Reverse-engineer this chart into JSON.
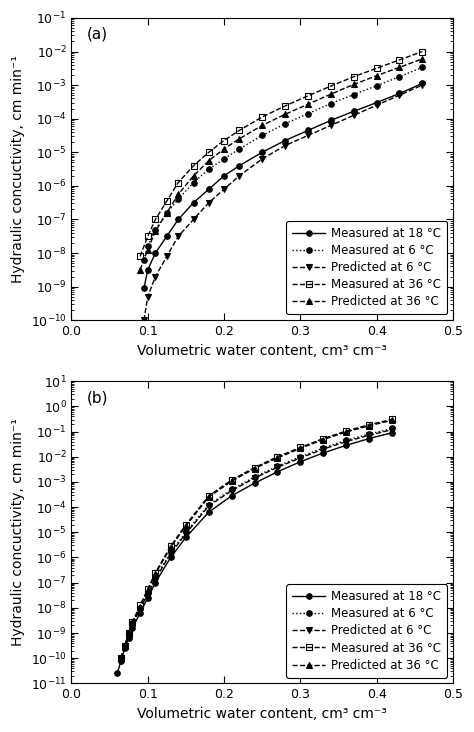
{
  "panel_a": {
    "label": "(a)",
    "ylim_exp": [
      -10,
      -1
    ],
    "xlim": [
      0.0,
      0.5
    ],
    "xticks": [
      0.0,
      0.1,
      0.2,
      0.3,
      0.4,
      0.5
    ],
    "series": {
      "measured_18": {
        "x": [
          0.095,
          0.1,
          0.11,
          0.125,
          0.14,
          0.16,
          0.18,
          0.2,
          0.22,
          0.25,
          0.28,
          0.31,
          0.34,
          0.37,
          0.4,
          0.43,
          0.46
        ],
        "y_exp": [
          -9.05,
          -8.5,
          -8.0,
          -7.5,
          -7.0,
          -6.5,
          -6.1,
          -5.7,
          -5.4,
          -5.0,
          -4.65,
          -4.35,
          -4.05,
          -3.78,
          -3.52,
          -3.25,
          -2.95
        ],
        "color": "#000000",
        "linestyle": "-",
        "marker": "o",
        "markersize": 4,
        "label": "Measured at 18 °C",
        "fillstyle": "full",
        "linewidth": 1.0
      },
      "measured_6": {
        "x": [
          0.095,
          0.1,
          0.11,
          0.125,
          0.14,
          0.16,
          0.18,
          0.2,
          0.22,
          0.25,
          0.28,
          0.31,
          0.34,
          0.37,
          0.4,
          0.43,
          0.46
        ],
        "y_exp": [
          -8.2,
          -7.8,
          -7.3,
          -6.8,
          -6.4,
          -5.9,
          -5.5,
          -5.2,
          -4.9,
          -4.5,
          -4.15,
          -3.85,
          -3.55,
          -3.28,
          -3.02,
          -2.75,
          -2.47
        ],
        "color": "#000000",
        "linestyle": ":",
        "marker": "o",
        "markersize": 4,
        "label": "Measured at 6 °C",
        "fillstyle": "full",
        "linewidth": 1.0
      },
      "predicted_6": {
        "x": [
          0.095,
          0.1,
          0.11,
          0.125,
          0.14,
          0.16,
          0.18,
          0.2,
          0.22,
          0.25,
          0.28,
          0.31,
          0.34,
          0.37,
          0.4,
          0.43,
          0.46
        ],
        "y_exp": [
          -10.0,
          -9.3,
          -8.7,
          -8.1,
          -7.5,
          -7.0,
          -6.5,
          -6.1,
          -5.7,
          -5.2,
          -4.8,
          -4.5,
          -4.2,
          -3.9,
          -3.6,
          -3.3,
          -3.0
        ],
        "color": "#000000",
        "linestyle": "--",
        "marker": "v",
        "markersize": 4,
        "label": "Predicted at 6 °C",
        "fillstyle": "full",
        "linewidth": 1.0
      },
      "measured_36": {
        "x": [
          0.09,
          0.1,
          0.11,
          0.125,
          0.14,
          0.16,
          0.18,
          0.2,
          0.22,
          0.25,
          0.28,
          0.31,
          0.34,
          0.37,
          0.4,
          0.43,
          0.46
        ],
        "y_exp": [
          -8.1,
          -7.5,
          -7.0,
          -6.45,
          -5.9,
          -5.4,
          -5.0,
          -4.65,
          -4.35,
          -3.95,
          -3.62,
          -3.32,
          -3.03,
          -2.75,
          -2.5,
          -2.25,
          -2.0
        ],
        "color": "#000000",
        "linestyle": "--",
        "marker": "s",
        "markersize": 4,
        "label": "Measured at 36 °C",
        "fillstyle": "none",
        "linewidth": 1.0
      },
      "predicted_36": {
        "x": [
          0.09,
          0.1,
          0.11,
          0.125,
          0.14,
          0.16,
          0.18,
          0.2,
          0.22,
          0.25,
          0.28,
          0.31,
          0.34,
          0.37,
          0.4,
          0.43,
          0.46
        ],
        "y_exp": [
          -8.5,
          -7.9,
          -7.35,
          -6.8,
          -6.25,
          -5.7,
          -5.25,
          -4.9,
          -4.6,
          -4.2,
          -3.87,
          -3.57,
          -3.27,
          -2.98,
          -2.72,
          -2.47,
          -2.22
        ],
        "color": "#000000",
        "linestyle": "--",
        "marker": "^",
        "markersize": 4,
        "label": "Predicted at 36 °C",
        "fillstyle": "full",
        "linewidth": 1.0
      }
    }
  },
  "panel_b": {
    "label": "(b)",
    "ylim_exp": [
      -11,
      1
    ],
    "xlim": [
      0.0,
      0.5
    ],
    "xticks": [
      0.0,
      0.1,
      0.2,
      0.3,
      0.4,
      0.5
    ],
    "series": {
      "measured_18": {
        "x": [
          0.06,
          0.065,
          0.07,
          0.075,
          0.08,
          0.09,
          0.1,
          0.11,
          0.13,
          0.15,
          0.18,
          0.21,
          0.24,
          0.27,
          0.3,
          0.33,
          0.36,
          0.39,
          0.42
        ],
        "y_exp": [
          -10.6,
          -10.1,
          -9.6,
          -9.2,
          -8.8,
          -8.2,
          -7.6,
          -7.0,
          -6.0,
          -5.2,
          -4.2,
          -3.55,
          -3.05,
          -2.6,
          -2.2,
          -1.85,
          -1.55,
          -1.28,
          -1.05
        ],
        "color": "#000000",
        "linestyle": "-",
        "marker": "o",
        "markersize": 4,
        "label": "Measured at 18 °C",
        "fillstyle": "full",
        "linewidth": 1.0
      },
      "measured_6": {
        "x": [
          0.065,
          0.07,
          0.075,
          0.08,
          0.09,
          0.1,
          0.11,
          0.13,
          0.15,
          0.18,
          0.21,
          0.24,
          0.27,
          0.3,
          0.33,
          0.36,
          0.39,
          0.42
        ],
        "y_exp": [
          -10.0,
          -9.5,
          -9.0,
          -8.6,
          -8.0,
          -7.4,
          -6.8,
          -5.8,
          -5.0,
          -3.9,
          -3.3,
          -2.8,
          -2.38,
          -2.0,
          -1.65,
          -1.35,
          -1.1,
          -0.88
        ],
        "color": "#000000",
        "linestyle": ":",
        "marker": "o",
        "markersize": 4,
        "label": "Measured at 6 °C",
        "fillstyle": "full",
        "linewidth": 1.0
      },
      "predicted_6": {
        "x": [
          0.065,
          0.07,
          0.075,
          0.08,
          0.09,
          0.1,
          0.11,
          0.13,
          0.15,
          0.18,
          0.21,
          0.24,
          0.27,
          0.3,
          0.33,
          0.36,
          0.39,
          0.42
        ],
        "y_exp": [
          -10.0,
          -9.5,
          -9.05,
          -8.65,
          -8.05,
          -7.45,
          -6.85,
          -5.85,
          -5.05,
          -3.95,
          -3.35,
          -2.85,
          -2.42,
          -2.05,
          -1.7,
          -1.4,
          -1.15,
          -0.93
        ],
        "color": "#000000",
        "linestyle": "--",
        "marker": "v",
        "markersize": 4,
        "label": "Predicted at 6 °C",
        "fillstyle": "full",
        "linewidth": 1.0
      },
      "measured_36": {
        "x": [
          0.065,
          0.07,
          0.075,
          0.08,
          0.09,
          0.1,
          0.11,
          0.13,
          0.15,
          0.18,
          0.21,
          0.24,
          0.27,
          0.3,
          0.33,
          0.36,
          0.39,
          0.42
        ],
        "y_exp": [
          -10.0,
          -9.5,
          -9.0,
          -8.55,
          -7.9,
          -7.25,
          -6.6,
          -5.55,
          -4.7,
          -3.55,
          -2.92,
          -2.43,
          -2.0,
          -1.63,
          -1.28,
          -0.98,
          -0.73,
          -0.52
        ],
        "color": "#000000",
        "linestyle": "--",
        "marker": "s",
        "markersize": 4,
        "label": "Measured at 36 °C",
        "fillstyle": "none",
        "linewidth": 1.0
      },
      "predicted_36": {
        "x": [
          0.065,
          0.07,
          0.075,
          0.08,
          0.09,
          0.1,
          0.11,
          0.13,
          0.15,
          0.18,
          0.21,
          0.24,
          0.27,
          0.3,
          0.33,
          0.36,
          0.39,
          0.42
        ],
        "y_exp": [
          -10.0,
          -9.5,
          -9.02,
          -8.58,
          -7.95,
          -7.3,
          -6.65,
          -5.6,
          -4.75,
          -3.6,
          -2.97,
          -2.47,
          -2.05,
          -1.67,
          -1.32,
          -1.02,
          -0.77,
          -0.56
        ],
        "color": "#000000",
        "linestyle": "--",
        "marker": "^",
        "markersize": 4,
        "label": "Predicted at 36 °C",
        "fillstyle": "full",
        "linewidth": 1.0
      }
    }
  },
  "ylabel": "Hydraulic concuctivity, cm min⁻¹",
  "xlabel": "Volumetric water content, cm³ cm⁻³",
  "legend_order": [
    "measured_18",
    "measured_6",
    "predicted_6",
    "measured_36",
    "predicted_36"
  ],
  "bg_color": "#ffffff",
  "tick_fontsize": 9,
  "label_fontsize": 10,
  "legend_fontsize": 8.5
}
